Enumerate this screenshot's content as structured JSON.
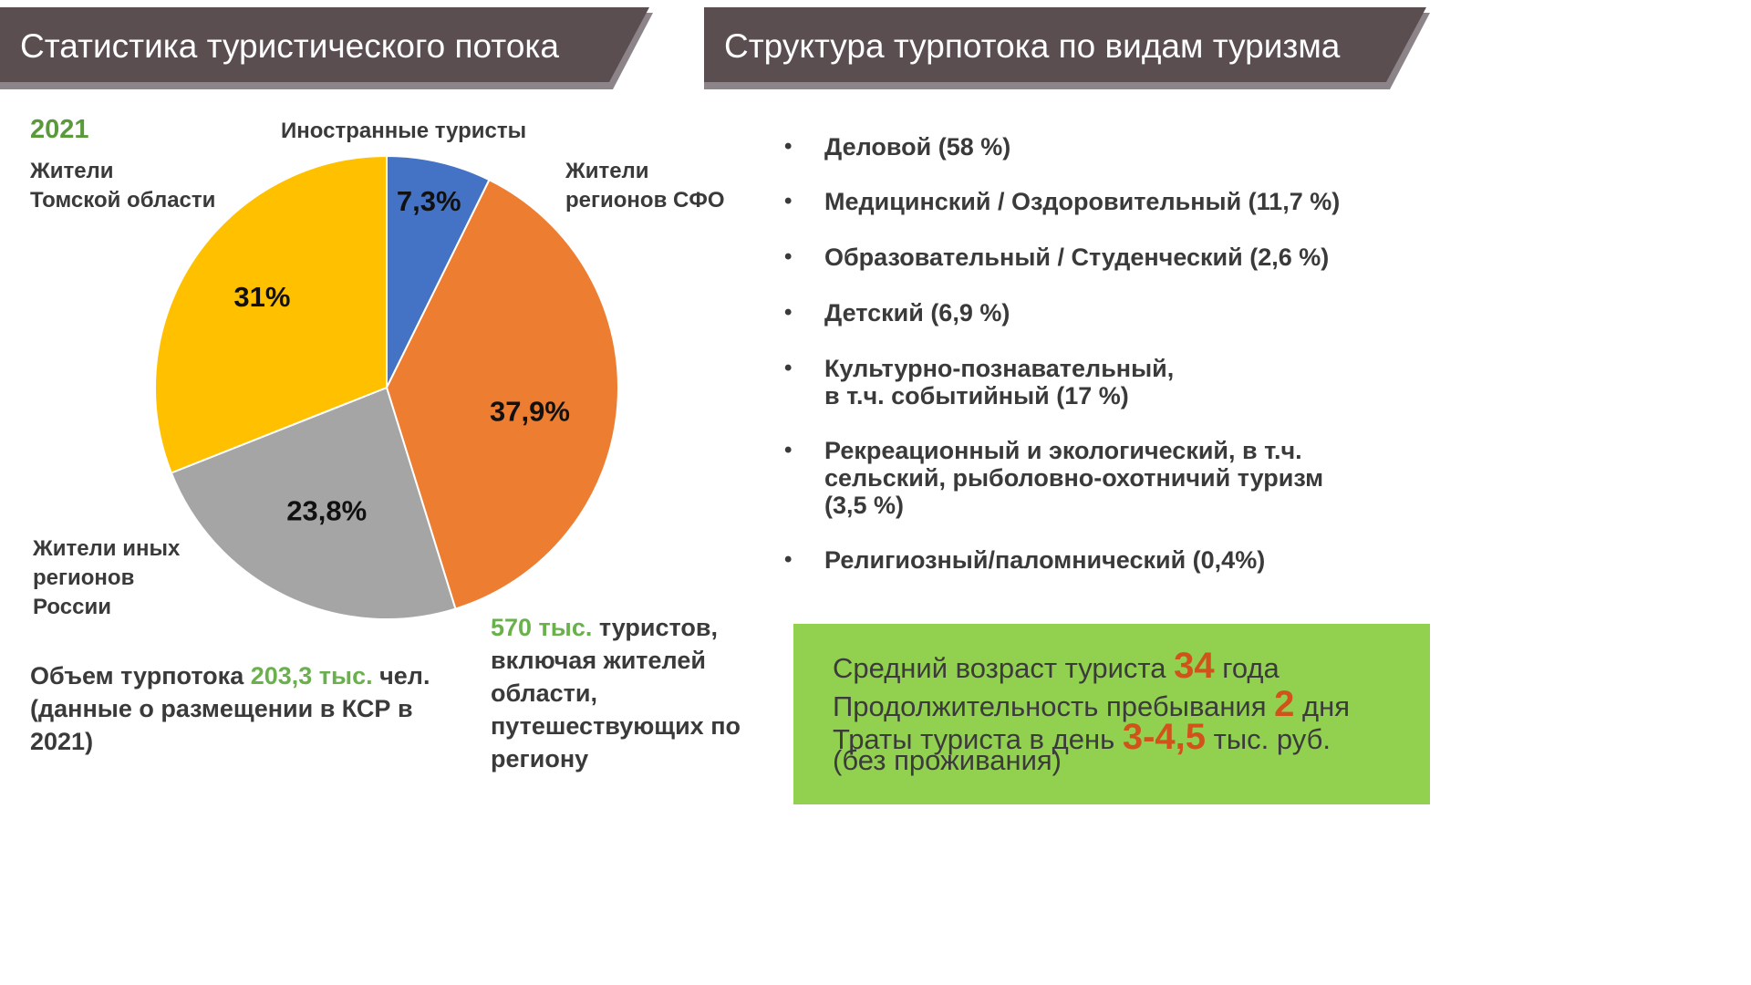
{
  "header_left": {
    "title": "Статистика туристического потока"
  },
  "header_right": {
    "title": "Структура турпотока по видам туризма"
  },
  "colors": {
    "banner": "#5a4e50",
    "banner_shadow": "#8c8488",
    "foreign": "#4472c4",
    "sfo": "#ed7d31",
    "russia": "#a5a5a5",
    "tomsk": "#ffc000",
    "accent_green": "#6ab04c",
    "info_box": "#92d050",
    "info_numbers": "#d0531b"
  },
  "chart_data": {
    "type": "pie",
    "year_label": "2021",
    "slices": [
      {
        "label": "Иностранные туристы",
        "value": 7.3,
        "value_label": "7,3%"
      },
      {
        "label": "Жители регионов СФО",
        "value": 37.9,
        "value_label": "37,9%"
      },
      {
        "label": "Жители иных регионов России",
        "value": 23.8,
        "value_label": "23,8%"
      },
      {
        "label": "Жители Томской области",
        "value": 31,
        "value_label": "31%"
      }
    ],
    "slice_labels": {
      "foreign": [
        "Иностранные туристы"
      ],
      "sfo": [
        "Жители",
        "регионов СФО"
      ],
      "russia": [
        "Жители иных",
        "регионов",
        "России"
      ],
      "tomsk": [
        "Жители",
        "Томской области"
      ]
    }
  },
  "volume": {
    "prefix": "Объем турпотока ",
    "value": "203,3 тыс.",
    "suffix": " чел. (данные о размещении в КСР в 2021)"
  },
  "total": {
    "value": "570 тыс.",
    "suffix": " туристов, включая жителей области, путешествующих по региону"
  },
  "tourism_types": [
    {
      "text": "Деловой  (58 %)"
    },
    {
      "text": "Медицинский / Оздоровительный (11,7 %)"
    },
    {
      "text": "Образовательный / Студенческий (2,6 %)"
    },
    {
      "text": "Детский (6,9 %)"
    },
    {
      "text": "Культурно-познавательный,\nв т.ч. событийный (17 %)"
    },
    {
      "text": "Рекреационный и экологический, в т.ч.\nсельский, рыболовно-охотничий туризм\n(3,5 %)"
    },
    {
      "text": "Религиозный/паломнический (0,4%)"
    }
  ],
  "info": {
    "age_label": "Средний возраст туриста ",
    "age_value": "34",
    "age_unit": " года",
    "stay_label": "Продолжительность пребывания ",
    "stay_value": "2",
    "stay_unit": " дня",
    "spend_label": "Траты туриста в день ",
    "spend_value": "3-4,5",
    "spend_unit": " тыс. руб.",
    "spend_note": "(без проживания)"
  }
}
